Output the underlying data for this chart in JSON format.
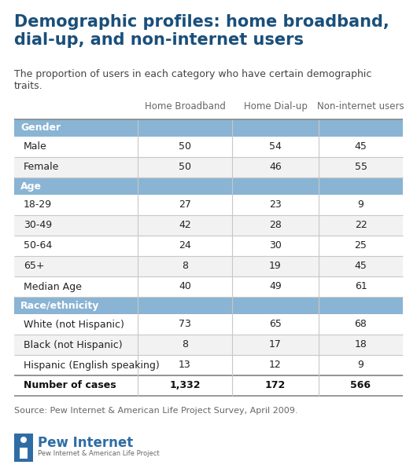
{
  "title": "Demographic profiles: home broadband,\ndial-up, and non-internet users",
  "subtitle": "The proportion of users in each category who have certain demographic\ntraits.",
  "col_headers": [
    "Home Broadband",
    "Home Dial-up",
    "Non-internet users"
  ],
  "header_bg": "#8ab4d4",
  "header_text_color": "#ffffff",
  "row_bg_alt": "#f2f2f2",
  "row_bg_main": "#ffffff",
  "border_color": "#c8c8c8",
  "vline_color": "#c8c8c8",
  "title_color": "#1a4f7a",
  "source_text": "Source: Pew Internet & American Life Project Survey, April 2009.",
  "sections": [
    {
      "label": "Gender",
      "rows": [
        {
          "label": "Male",
          "values": [
            "50",
            "54",
            "45"
          ]
        },
        {
          "label": "Female",
          "values": [
            "50",
            "46",
            "55"
          ]
        }
      ]
    },
    {
      "label": "Age",
      "rows": [
        {
          "label": "18-29",
          "values": [
            "27",
            "23",
            "9"
          ]
        },
        {
          "label": "30-49",
          "values": [
            "42",
            "28",
            "22"
          ]
        },
        {
          "label": "50-64",
          "values": [
            "24",
            "30",
            "25"
          ]
        },
        {
          "label": "65+",
          "values": [
            "8",
            "19",
            "45"
          ]
        },
        {
          "label": "Median Age",
          "values": [
            "40",
            "49",
            "61"
          ]
        }
      ]
    },
    {
      "label": "Race/ethnicity",
      "rows": [
        {
          "label": "White (not Hispanic)",
          "values": [
            "73",
            "65",
            "68"
          ]
        },
        {
          "label": "Black (not Hispanic)",
          "values": [
            "8",
            "17",
            "18"
          ]
        },
        {
          "label": "Hispanic (English speaking)",
          "values": [
            "13",
            "12",
            "9"
          ]
        }
      ]
    }
  ],
  "footer_row": {
    "label": "Number of cases",
    "values": [
      "1,332",
      "172",
      "566"
    ]
  },
  "pew_blue": "#2e6da4"
}
